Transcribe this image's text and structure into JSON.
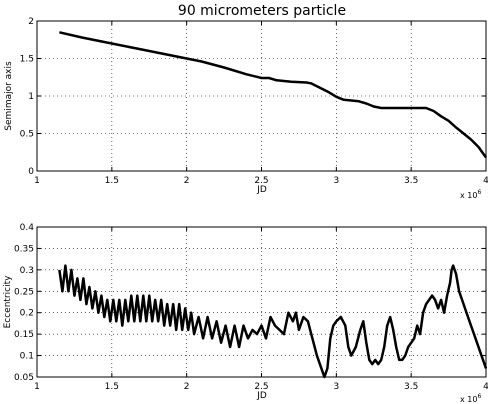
{
  "chart_data": [
    {
      "type": "line",
      "title": "90 micrometers particle",
      "xlabel": "JD",
      "ylabel": "Semimajor axis",
      "x_multiplier": "x 10",
      "x_multiplier_exp": "6",
      "xlim": [
        1,
        4
      ],
      "ylim": [
        0,
        2
      ],
      "xticks": [
        "1",
        "1.5",
        "2",
        "2.5",
        "3",
        "3.5",
        "4"
      ],
      "yticks": [
        "0",
        "0.5",
        "1",
        "1.5",
        "2"
      ],
      "grid": true,
      "series": [
        {
          "x": [
            1.15,
            1.3,
            1.5,
            1.7,
            1.9,
            2.1,
            2.25,
            2.4,
            2.5,
            2.55,
            2.6,
            2.7,
            2.8,
            2.83,
            2.88,
            2.95,
            3.0,
            3.05,
            3.1,
            3.15,
            3.2,
            3.25,
            3.3,
            3.4,
            3.5,
            3.6,
            3.65,
            3.7,
            3.75,
            3.8,
            3.85,
            3.9,
            3.95,
            4.0
          ],
          "y": [
            1.85,
            1.78,
            1.7,
            1.62,
            1.54,
            1.46,
            1.38,
            1.29,
            1.24,
            1.24,
            1.21,
            1.19,
            1.18,
            1.17,
            1.12,
            1.05,
            0.99,
            0.95,
            0.94,
            0.93,
            0.9,
            0.86,
            0.84,
            0.84,
            0.84,
            0.84,
            0.8,
            0.73,
            0.67,
            0.58,
            0.5,
            0.42,
            0.32,
            0.18
          ]
        }
      ]
    },
    {
      "type": "line",
      "xlabel": "JD",
      "ylabel": "Eccentricity",
      "x_multiplier": "x 10",
      "x_multiplier_exp": "6",
      "xlim": [
        1,
        4
      ],
      "ylim": [
        0.05,
        0.4
      ],
      "xticks": [
        "1",
        "1.5",
        "2",
        "2.5",
        "3",
        "3.5",
        "4"
      ],
      "yticks": [
        "0.05",
        "0.1",
        "0.15",
        "0.2",
        "0.25",
        "0.3",
        "0.35",
        "0.4"
      ],
      "grid": true,
      "series": [
        {
          "x": [
            1.15,
            1.17,
            1.19,
            1.21,
            1.23,
            1.25,
            1.27,
            1.29,
            1.31,
            1.33,
            1.35,
            1.37,
            1.39,
            1.41,
            1.43,
            1.45,
            1.47,
            1.49,
            1.51,
            1.53,
            1.55,
            1.57,
            1.59,
            1.61,
            1.63,
            1.65,
            1.67,
            1.69,
            1.71,
            1.73,
            1.75,
            1.77,
            1.79,
            1.81,
            1.83,
            1.85,
            1.87,
            1.89,
            1.91,
            1.93,
            1.95,
            1.97,
            1.99,
            2.01,
            2.03,
            2.05,
            2.08,
            2.11,
            2.14,
            2.17,
            2.2,
            2.23,
            2.26,
            2.29,
            2.32,
            2.35,
            2.38,
            2.41,
            2.44,
            2.47,
            2.5,
            2.53,
            2.56,
            2.59,
            2.62,
            2.65,
            2.68,
            2.71,
            2.73,
            2.75,
            2.78,
            2.81,
            2.84,
            2.87,
            2.9,
            2.92,
            2.94,
            2.96,
            2.98,
            3.0,
            3.03,
            3.06,
            3.08,
            3.1,
            3.13,
            3.16,
            3.18,
            3.2,
            3.22,
            3.24,
            3.26,
            3.28,
            3.3,
            3.32,
            3.34,
            3.36,
            3.38,
            3.4,
            3.42,
            3.44,
            3.46,
            3.48,
            3.5,
            3.52,
            3.54,
            3.56,
            3.58,
            3.6,
            3.62,
            3.64,
            3.66,
            3.68,
            3.7,
            3.72,
            3.74,
            3.76,
            3.77,
            3.78,
            3.8,
            3.82,
            3.84,
            3.86,
            3.88,
            3.9,
            3.92,
            3.94,
            3.96,
            3.98,
            4.0
          ],
          "y": [
            0.3,
            0.25,
            0.31,
            0.25,
            0.3,
            0.24,
            0.28,
            0.23,
            0.28,
            0.22,
            0.26,
            0.21,
            0.25,
            0.2,
            0.24,
            0.19,
            0.23,
            0.18,
            0.23,
            0.18,
            0.23,
            0.17,
            0.23,
            0.18,
            0.24,
            0.18,
            0.24,
            0.18,
            0.24,
            0.18,
            0.24,
            0.18,
            0.23,
            0.18,
            0.23,
            0.17,
            0.22,
            0.17,
            0.22,
            0.16,
            0.22,
            0.16,
            0.21,
            0.16,
            0.2,
            0.15,
            0.19,
            0.14,
            0.19,
            0.14,
            0.18,
            0.13,
            0.17,
            0.12,
            0.17,
            0.12,
            0.17,
            0.14,
            0.16,
            0.15,
            0.17,
            0.14,
            0.19,
            0.17,
            0.16,
            0.15,
            0.2,
            0.18,
            0.2,
            0.16,
            0.19,
            0.18,
            0.14,
            0.1,
            0.07,
            0.05,
            0.07,
            0.14,
            0.17,
            0.18,
            0.19,
            0.17,
            0.12,
            0.1,
            0.12,
            0.16,
            0.18,
            0.13,
            0.09,
            0.08,
            0.09,
            0.08,
            0.09,
            0.12,
            0.17,
            0.19,
            0.16,
            0.12,
            0.09,
            0.09,
            0.1,
            0.12,
            0.13,
            0.14,
            0.17,
            0.15,
            0.2,
            0.22,
            0.23,
            0.24,
            0.23,
            0.21,
            0.23,
            0.2,
            0.24,
            0.27,
            0.3,
            0.31,
            0.29,
            0.25,
            0.23,
            0.21,
            0.19,
            0.17,
            0.15,
            0.13,
            0.11,
            0.09,
            0.07
          ]
        }
      ]
    }
  ]
}
